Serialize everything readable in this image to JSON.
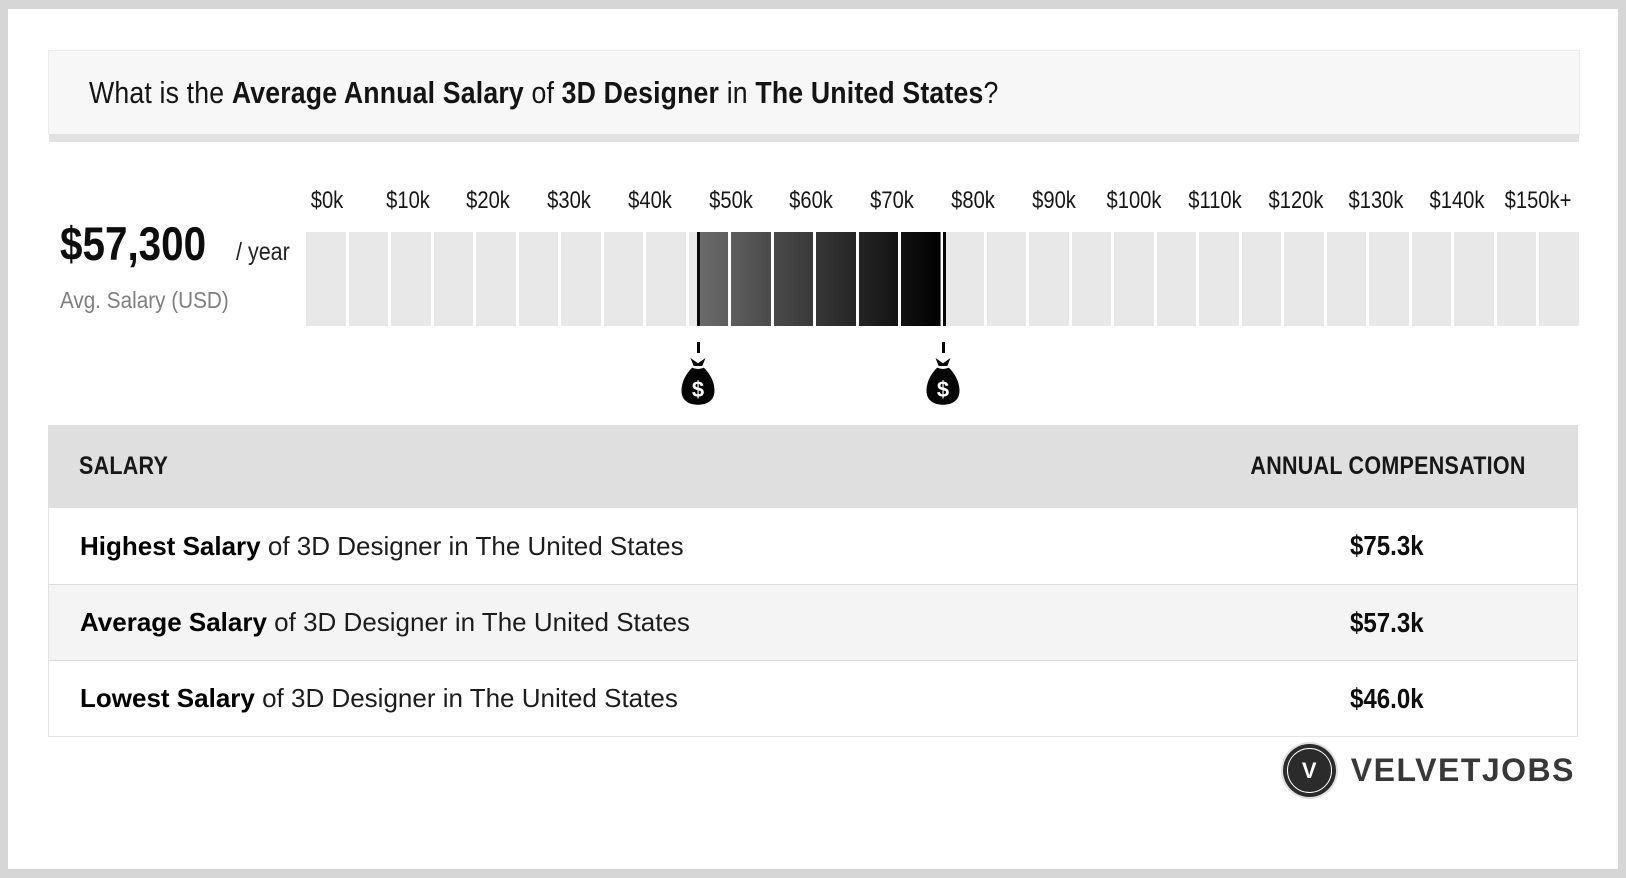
{
  "title_parts": [
    {
      "text": "What is the ",
      "bold": false
    },
    {
      "text": "Average Annual Salary",
      "bold": true
    },
    {
      "text": " of ",
      "bold": false
    },
    {
      "text": "3D Designer",
      "bold": true
    },
    {
      "text": " in ",
      "bold": false
    },
    {
      "text": "The United States",
      "bold": true
    },
    {
      "text": "?",
      "bold": false
    }
  ],
  "summary": {
    "amount": "$57,300",
    "per": "/ year",
    "caption": "Avg. Salary (USD)"
  },
  "chart_data": {
    "type": "range-scale",
    "title": "Salary range scale for 3D Designer in The United States",
    "axis_tick_labels": [
      "$0k",
      "$10k",
      "$20k",
      "$30k",
      "$40k",
      "$50k",
      "$60k",
      "$70k",
      "$80k",
      "$90k",
      "$100k",
      "$110k",
      "$120k",
      "$130k",
      "$140k",
      "$150k+"
    ],
    "axis_tick_values_k": [
      0,
      10,
      20,
      30,
      40,
      50,
      60,
      70,
      80,
      90,
      100,
      110,
      120,
      130,
      140,
      150
    ],
    "axis_range_k": [
      0,
      150
    ],
    "average_salary_usd": 57300,
    "highlight_range_k": [
      46.0,
      75.3
    ],
    "marker_values_k": [
      46.0,
      75.3
    ],
    "cells": 30,
    "legend_position": "none",
    "grid": false,
    "colors": {
      "cell": "#e8e8e8",
      "gradient_start": "#6b6b6b",
      "gradient_end": "#000000",
      "marker": "#050505"
    }
  },
  "table": {
    "headers": [
      "SALARY",
      "ANNUAL COMPENSATION"
    ],
    "rows": [
      {
        "label_bold": "Highest Salary",
        "label_rest": " of 3D Designer in The United States",
        "value": "$75.3k"
      },
      {
        "label_bold": "Average Salary",
        "label_rest": " of 3D Designer in The United States",
        "value": "$57.3k"
      },
      {
        "label_bold": "Lowest Salary",
        "label_rest": " of 3D Designer in The United States",
        "value": "$46.0k"
      }
    ]
  },
  "footer": {
    "brand": "VELVETJOBS",
    "logo_letter": "V"
  }
}
